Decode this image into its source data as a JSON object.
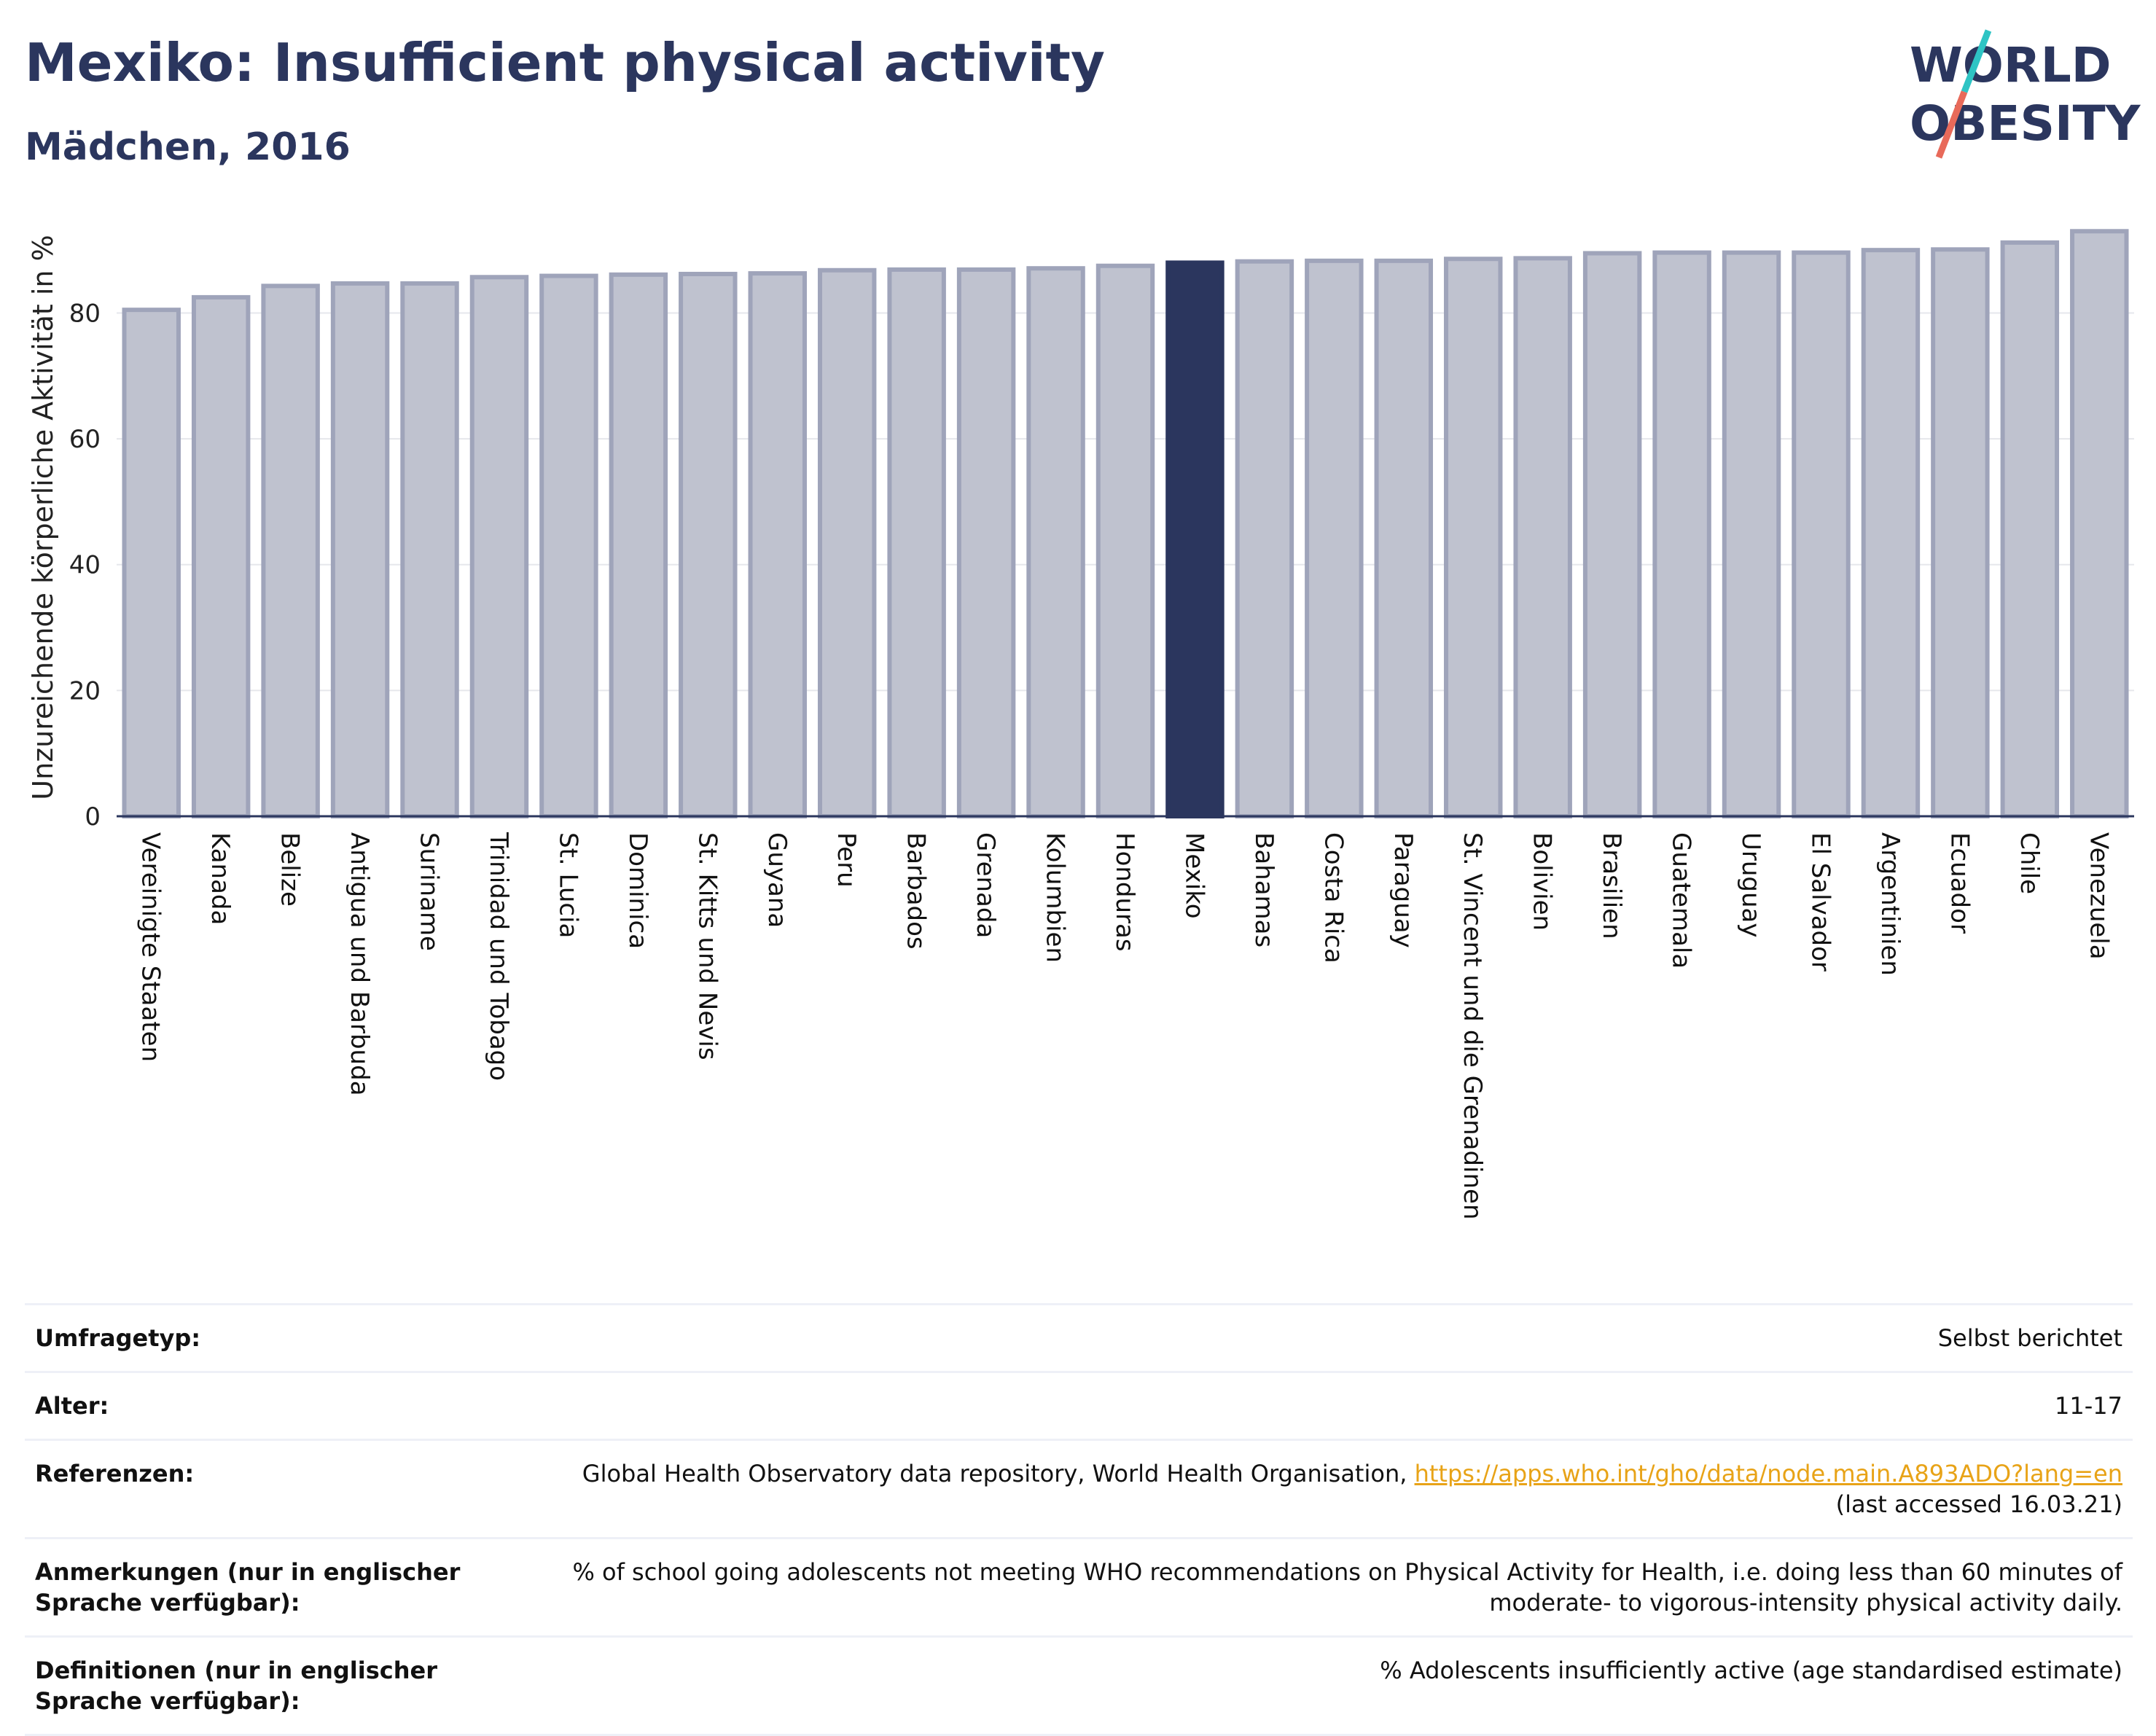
{
  "header": {
    "title": "Mexiko: Insufficient physical activity",
    "subtitle": "Mädchen, 2016"
  },
  "logo": {
    "line1": "WORLD",
    "line2": "OBESITY",
    "colors": {
      "text": "#2b365e",
      "slash_teal": "#2ec4c4",
      "slash_coral": "#e86a5a"
    }
  },
  "colors": {
    "bar": "#bfc2cf",
    "bar_border": "#9fa4ba",
    "highlight": "#2b365e",
    "axis": "#2b365e",
    "grid": "#e6e7ec",
    "link": "#e8a317"
  },
  "chart_data": {
    "type": "bar",
    "ylabel": "Unzureichende körperliche Aktivität in %",
    "ylim": [
      0,
      95
    ],
    "yticks": [
      0,
      20,
      40,
      60,
      80
    ],
    "grid": true,
    "highlight": "Mexiko",
    "categories": [
      "Vereinigte Staaten",
      "Kanada",
      "Belize",
      "Antigua und Barbuda",
      "Suriname",
      "Trinidad und Tobago",
      "St. Lucia",
      "Dominica",
      "St. Kitts und Nevis",
      "Guyana",
      "Peru",
      "Barbados",
      "Grenada",
      "Kolumbien",
      "Honduras",
      "Mexiko",
      "Bahamas",
      "Costa Rica",
      "Paraguay",
      "St. Vincent und die Grenadinen",
      "Bolivien",
      "Brasilien",
      "Guatemala",
      "Uruguay",
      "El Salvador",
      "Argentinien",
      "Ecuador",
      "Chile",
      "Venezuela"
    ],
    "values": [
      80.5,
      82.5,
      84.3,
      84.7,
      84.7,
      85.7,
      85.9,
      86.1,
      86.2,
      86.3,
      86.8,
      86.9,
      86.9,
      87.1,
      87.5,
      88.0,
      88.2,
      88.3,
      88.3,
      88.6,
      88.7,
      89.5,
      89.6,
      89.6,
      89.6,
      90.0,
      90.1,
      91.2,
      93.0
    ]
  },
  "info": [
    {
      "key": "Umfragetyp:",
      "value": "Selbst berichtet"
    },
    {
      "key": "Alter:",
      "value": "11-17"
    },
    {
      "key": "Referenzen:",
      "value": "Global Health Observatory data repository, World Health Organisation, ",
      "link": "https://apps.who.int/gho/data/node.main.A893ADO?lang=en",
      "value_after": "(last accessed 16.03.21)"
    },
    {
      "key": "Anmerkungen (nur in englischer Sprache verfügbar):",
      "value": "% of school going adolescents not meeting WHO recommendations on Physical Activity for Health, i.e. doing less than 60 minutes of moderate- to vigorous-intensity physical activity daily."
    },
    {
      "key": "Definitionen (nur in englischer Sprache verfügbar):",
      "value": "% Adolescents insufficiently active (age standardised estimate)"
    }
  ]
}
